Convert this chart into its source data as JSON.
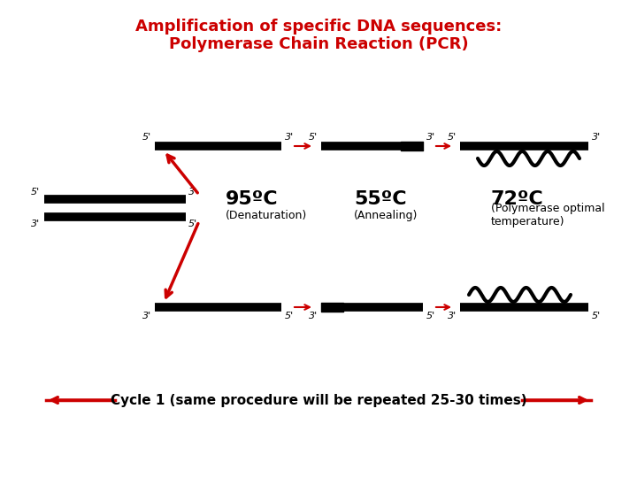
{
  "title_line1": "Amplification of specific DNA sequences:",
  "title_line2": "Polymerase Chain Reaction (PCR)",
  "title_color": "#cc0000",
  "bg_color": "#ffffff",
  "strand_color": "#000000",
  "arrow_color": "#cc0000",
  "temp_labels": [
    "95ºC",
    "55ºC",
    "72ºC"
  ],
  "temp_sub0": "(Denaturation)",
  "temp_sub1": "(Annealing)",
  "temp_sub2": "(Polymerase optimal\ntemperature)",
  "cycle_text": "Cycle 1 (same procedure will be repeated 25-30 times)"
}
